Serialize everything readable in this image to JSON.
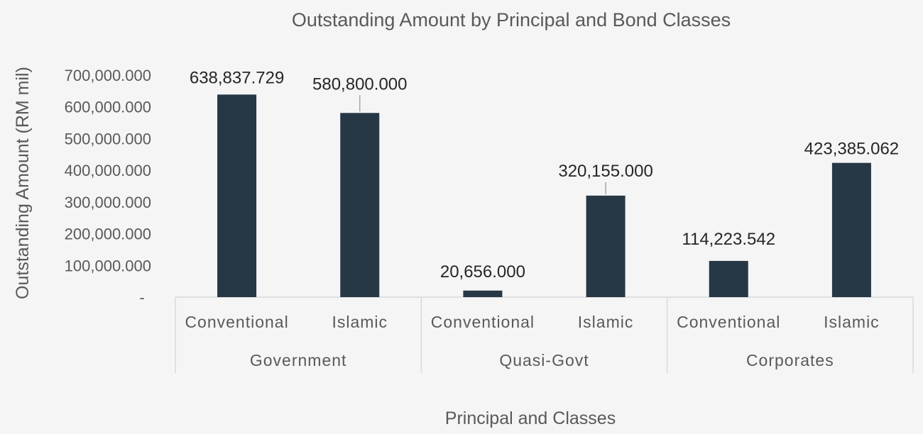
{
  "chart_data": {
    "type": "bar",
    "title": "Outstanding Amount by Principal and Bond Classes",
    "xlabel": "Principal and Classes",
    "ylabel": "Outstanding Amount (RM mil)",
    "ylim": [
      0,
      700000
    ],
    "yticks": [
      {
        "value": 0,
        "label": "-"
      },
      {
        "value": 100000,
        "label": "100,000.000"
      },
      {
        "value": 200000,
        "label": "200,000.000"
      },
      {
        "value": 300000,
        "label": "300,000.000"
      },
      {
        "value": 400000,
        "label": "400,000.000"
      },
      {
        "value": 500000,
        "label": "500,000.000"
      },
      {
        "value": 600000,
        "label": "600,000.000"
      },
      {
        "value": 700000,
        "label": "700,000.000"
      }
    ],
    "groups": [
      {
        "name": "Government",
        "categories": [
          "Conventional",
          "Islamic"
        ]
      },
      {
        "name": "Quasi-Govt",
        "categories": [
          "Conventional",
          "Islamic"
        ]
      },
      {
        "name": "Corporates",
        "categories": [
          "Conventional",
          "Islamic"
        ]
      }
    ],
    "bars": [
      {
        "group": "Government",
        "category": "Conventional",
        "value": 638837.729,
        "label": "638,837.729"
      },
      {
        "group": "Government",
        "category": "Islamic",
        "value": 580800.0,
        "label": "580,800.000"
      },
      {
        "group": "Quasi-Govt",
        "category": "Conventional",
        "value": 20656.0,
        "label": "20,656.000"
      },
      {
        "group": "Quasi-Govt",
        "category": "Islamic",
        "value": 320155.0,
        "label": "320,155.000"
      },
      {
        "group": "Corporates",
        "category": "Conventional",
        "value": 114223.542,
        "label": "114,223.542"
      },
      {
        "group": "Corporates",
        "category": "Islamic",
        "value": 423385.062,
        "label": "423,385.062"
      }
    ],
    "grid": false,
    "legend": "none",
    "bar_color": "#263746"
  }
}
